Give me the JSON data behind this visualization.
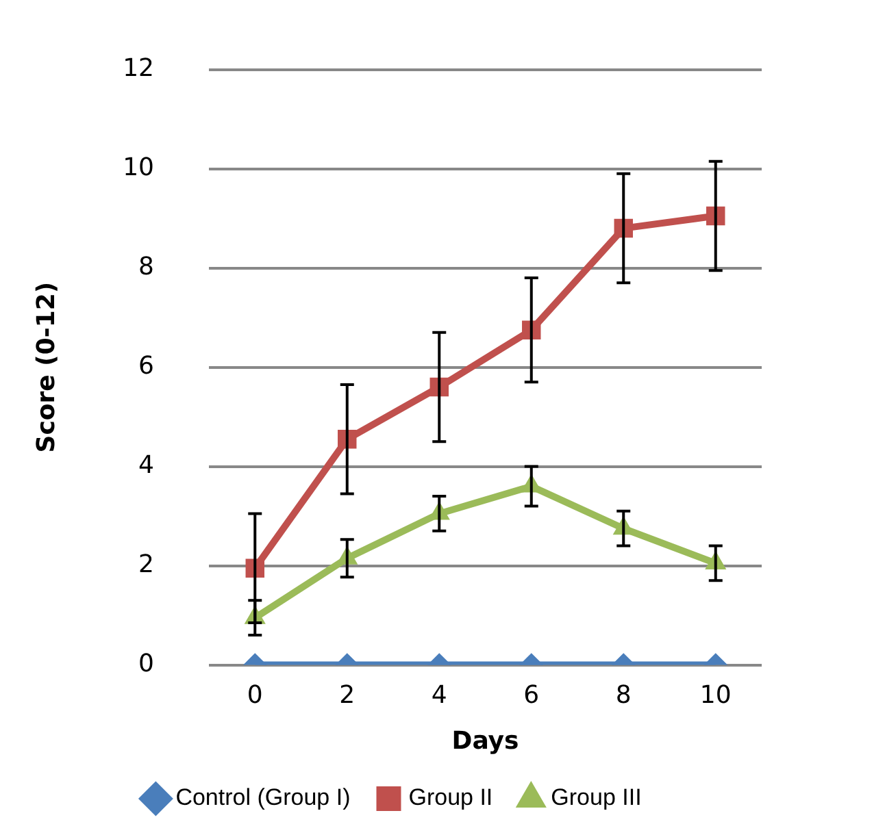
{
  "chart_data": {
    "type": "line",
    "xlabel": "Days",
    "ylabel": "Score (0-12)",
    "categories": [
      "0",
      "2",
      "4",
      "6",
      "8",
      "10"
    ],
    "ylim": [
      0,
      12
    ],
    "yticks": [
      0,
      2,
      4,
      6,
      8,
      10,
      12
    ],
    "grid": "y",
    "legend": "bottom",
    "series": [
      {
        "name": "Control (Group I)",
        "color": "#4a7ebb",
        "marker": "diamond",
        "values": [
          0,
          0,
          0,
          0,
          0,
          0
        ]
      },
      {
        "name": "Group II",
        "color": "#c0504d",
        "marker": "square",
        "values": [
          1.95,
          4.55,
          5.6,
          6.75,
          8.8,
          9.05
        ],
        "errors": [
          1.1,
          1.1,
          1.1,
          1.05,
          1.1,
          1.1
        ]
      },
      {
        "name": "Group III",
        "color": "#9bbb59",
        "marker": "triangle",
        "values": [
          0.95,
          2.15,
          3.05,
          3.6,
          2.75,
          2.05
        ],
        "errors": [
          0.35,
          0.38,
          0.35,
          0.4,
          0.35,
          0.35
        ]
      }
    ]
  }
}
